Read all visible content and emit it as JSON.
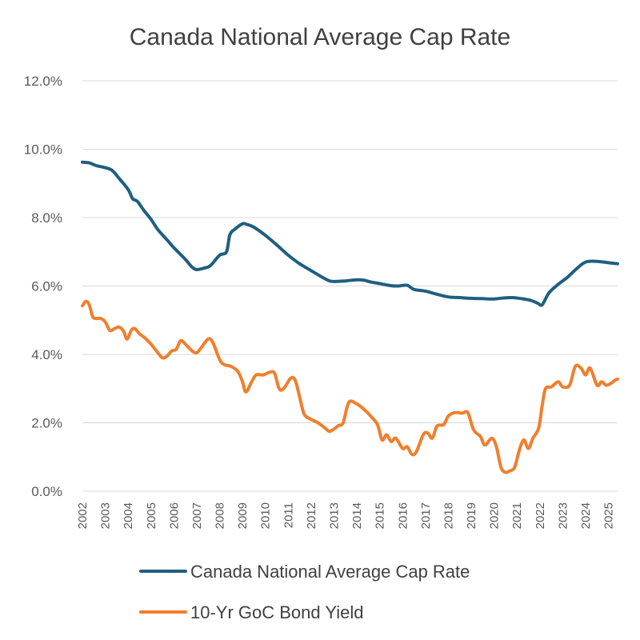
{
  "chart_data": {
    "type": "line",
    "title": "Canada National Average Cap Rate",
    "xlabel": "",
    "ylabel": "",
    "ylim": [
      0,
      12
    ],
    "xlim": [
      2002,
      2025.4
    ],
    "grid": true,
    "legend_position": "bottom",
    "y_ticks": [
      "0.0%",
      "2.0%",
      "4.0%",
      "6.0%",
      "8.0%",
      "10.0%",
      "12.0%"
    ],
    "x_ticks": [
      "2002",
      "2003",
      "2004",
      "2005",
      "2006",
      "2007",
      "2008",
      "2009",
      "2010",
      "2011",
      "2012",
      "2013",
      "2014",
      "2015",
      "2016",
      "2017",
      "2018",
      "2019",
      "2020",
      "2021",
      "2022",
      "2023",
      "2024",
      "2025"
    ],
    "series": [
      {
        "name": "Canada National Average Cap Rate",
        "color": "#1f5f80",
        "points": [
          [
            2002.0,
            9.62
          ],
          [
            2002.3,
            9.6
          ],
          [
            2002.6,
            9.52
          ],
          [
            2003.0,
            9.46
          ],
          [
            2003.3,
            9.38
          ],
          [
            2003.6,
            9.15
          ],
          [
            2004.0,
            8.82
          ],
          [
            2004.2,
            8.55
          ],
          [
            2004.4,
            8.48
          ],
          [
            2004.7,
            8.2
          ],
          [
            2005.0,
            7.95
          ],
          [
            2005.3,
            7.65
          ],
          [
            2005.7,
            7.35
          ],
          [
            2006.0,
            7.12
          ],
          [
            2006.5,
            6.78
          ],
          [
            2006.8,
            6.55
          ],
          [
            2007.0,
            6.48
          ],
          [
            2007.3,
            6.52
          ],
          [
            2007.6,
            6.6
          ],
          [
            2008.0,
            6.9
          ],
          [
            2008.3,
            7.0
          ],
          [
            2008.45,
            7.5
          ],
          [
            2008.7,
            7.68
          ],
          [
            2009.0,
            7.82
          ],
          [
            2009.2,
            7.8
          ],
          [
            2009.5,
            7.72
          ],
          [
            2010.0,
            7.48
          ],
          [
            2010.5,
            7.2
          ],
          [
            2011.0,
            6.9
          ],
          [
            2011.5,
            6.65
          ],
          [
            2012.0,
            6.45
          ],
          [
            2012.5,
            6.25
          ],
          [
            2012.8,
            6.15
          ],
          [
            2013.0,
            6.13
          ],
          [
            2013.5,
            6.15
          ],
          [
            2014.0,
            6.18
          ],
          [
            2014.3,
            6.17
          ],
          [
            2014.6,
            6.12
          ],
          [
            2015.0,
            6.07
          ],
          [
            2015.5,
            6.01
          ],
          [
            2015.8,
            6.0
          ],
          [
            2016.2,
            6.02
          ],
          [
            2016.5,
            5.9
          ],
          [
            2017.0,
            5.85
          ],
          [
            2017.5,
            5.76
          ],
          [
            2018.0,
            5.68
          ],
          [
            2018.5,
            5.66
          ],
          [
            2019.0,
            5.64
          ],
          [
            2019.5,
            5.63
          ],
          [
            2020.0,
            5.62
          ],
          [
            2020.4,
            5.65
          ],
          [
            2020.8,
            5.66
          ],
          [
            2021.2,
            5.63
          ],
          [
            2021.6,
            5.58
          ],
          [
            2021.9,
            5.5
          ],
          [
            2022.1,
            5.45
          ],
          [
            2022.4,
            5.8
          ],
          [
            2022.8,
            6.05
          ],
          [
            2023.2,
            6.25
          ],
          [
            2023.6,
            6.5
          ],
          [
            2024.0,
            6.7
          ],
          [
            2024.5,
            6.72
          ],
          [
            2025.0,
            6.68
          ],
          [
            2025.4,
            6.65
          ]
        ]
      },
      {
        "name": "10-Yr GoC Bond Yield",
        "color": "#f07f2d",
        "points": [
          [
            2002.0,
            5.42
          ],
          [
            2002.15,
            5.55
          ],
          [
            2002.3,
            5.45
          ],
          [
            2002.45,
            5.1
          ],
          [
            2002.6,
            5.05
          ],
          [
            2002.8,
            5.05
          ],
          [
            2003.0,
            4.95
          ],
          [
            2003.2,
            4.7
          ],
          [
            2003.4,
            4.75
          ],
          [
            2003.6,
            4.8
          ],
          [
            2003.8,
            4.68
          ],
          [
            2003.95,
            4.45
          ],
          [
            2004.15,
            4.72
          ],
          [
            2004.3,
            4.75
          ],
          [
            2004.5,
            4.6
          ],
          [
            2004.7,
            4.5
          ],
          [
            2005.0,
            4.3
          ],
          [
            2005.3,
            4.05
          ],
          [
            2005.5,
            3.9
          ],
          [
            2005.7,
            3.95
          ],
          [
            2005.9,
            4.1
          ],
          [
            2006.1,
            4.15
          ],
          [
            2006.3,
            4.4
          ],
          [
            2006.5,
            4.3
          ],
          [
            2006.8,
            4.1
          ],
          [
            2007.0,
            4.05
          ],
          [
            2007.2,
            4.2
          ],
          [
            2007.5,
            4.45
          ],
          [
            2007.7,
            4.35
          ],
          [
            2008.0,
            3.85
          ],
          [
            2008.2,
            3.7
          ],
          [
            2008.5,
            3.65
          ],
          [
            2008.8,
            3.5
          ],
          [
            2009.0,
            3.2
          ],
          [
            2009.15,
            2.9
          ],
          [
            2009.4,
            3.2
          ],
          [
            2009.6,
            3.4
          ],
          [
            2009.9,
            3.4
          ],
          [
            2010.2,
            3.48
          ],
          [
            2010.4,
            3.45
          ],
          [
            2010.6,
            3.0
          ],
          [
            2010.8,
            3.0
          ],
          [
            2011.1,
            3.3
          ],
          [
            2011.3,
            3.25
          ],
          [
            2011.5,
            2.75
          ],
          [
            2011.7,
            2.25
          ],
          [
            2012.0,
            2.1
          ],
          [
            2012.3,
            2.0
          ],
          [
            2012.6,
            1.85
          ],
          [
            2012.8,
            1.75
          ],
          [
            2013.0,
            1.82
          ],
          [
            2013.2,
            1.92
          ],
          [
            2013.4,
            2.0
          ],
          [
            2013.65,
            2.6
          ],
          [
            2014.0,
            2.55
          ],
          [
            2014.3,
            2.4
          ],
          [
            2014.6,
            2.2
          ],
          [
            2014.9,
            1.95
          ],
          [
            2015.1,
            1.5
          ],
          [
            2015.3,
            1.65
          ],
          [
            2015.5,
            1.45
          ],
          [
            2015.7,
            1.55
          ],
          [
            2016.0,
            1.25
          ],
          [
            2016.2,
            1.3
          ],
          [
            2016.4,
            1.08
          ],
          [
            2016.6,
            1.15
          ],
          [
            2016.9,
            1.65
          ],
          [
            2017.1,
            1.7
          ],
          [
            2017.3,
            1.55
          ],
          [
            2017.5,
            1.9
          ],
          [
            2017.8,
            1.95
          ],
          [
            2018.0,
            2.2
          ],
          [
            2018.3,
            2.3
          ],
          [
            2018.6,
            2.28
          ],
          [
            2018.85,
            2.3
          ],
          [
            2019.1,
            1.8
          ],
          [
            2019.4,
            1.6
          ],
          [
            2019.6,
            1.35
          ],
          [
            2019.9,
            1.55
          ],
          [
            2020.1,
            1.3
          ],
          [
            2020.3,
            0.7
          ],
          [
            2020.5,
            0.55
          ],
          [
            2020.7,
            0.6
          ],
          [
            2020.9,
            0.7
          ],
          [
            2021.1,
            1.2
          ],
          [
            2021.3,
            1.5
          ],
          [
            2021.5,
            1.25
          ],
          [
            2021.7,
            1.55
          ],
          [
            2021.95,
            1.85
          ],
          [
            2022.1,
            2.5
          ],
          [
            2022.25,
            3.0
          ],
          [
            2022.5,
            3.05
          ],
          [
            2022.8,
            3.2
          ],
          [
            2023.0,
            3.05
          ],
          [
            2023.3,
            3.1
          ],
          [
            2023.55,
            3.65
          ],
          [
            2023.8,
            3.6
          ],
          [
            2024.0,
            3.4
          ],
          [
            2024.2,
            3.6
          ],
          [
            2024.5,
            3.1
          ],
          [
            2024.7,
            3.2
          ],
          [
            2024.9,
            3.1
          ],
          [
            2025.1,
            3.15
          ],
          [
            2025.3,
            3.25
          ],
          [
            2025.4,
            3.28
          ]
        ]
      }
    ]
  }
}
